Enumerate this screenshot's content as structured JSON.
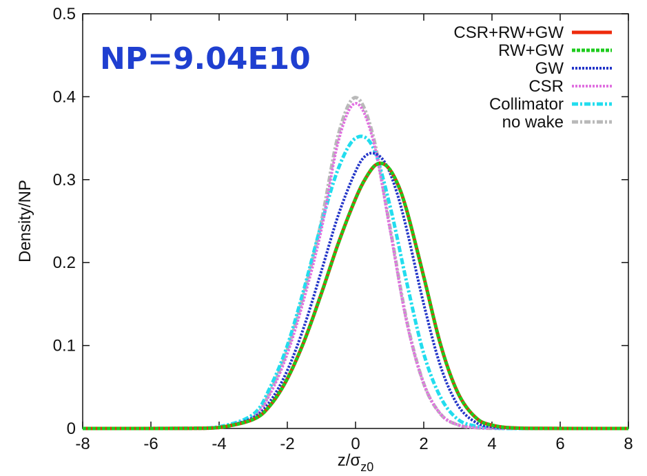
{
  "chart_data": {
    "type": "line",
    "annotation": "NP=9.04E10",
    "xlabel": "z/σ",
    "xlabel_sub": "z0",
    "ylabel": "Density/NP",
    "xlim": [
      -8,
      8
    ],
    "ylim": [
      0,
      0.5
    ],
    "xticks": [
      -8,
      -6,
      -4,
      -2,
      0,
      2,
      4,
      6,
      8
    ],
    "yticks": [
      0,
      0.1,
      0.2,
      0.3,
      0.4,
      0.5
    ],
    "grid": false,
    "legend_position": "top-right",
    "series": [
      {
        "name": "CSR+RW+GW",
        "color": "#ee2a0c",
        "dash": "solid",
        "x": [
          -8,
          -5,
          -4,
          -3,
          -2.5,
          -2,
          -1.5,
          -1,
          -0.5,
          0,
          0.3,
          0.6,
          0.9,
          1.2,
          1.5,
          2,
          2.5,
          3,
          3.5,
          4,
          5,
          8
        ],
        "y": [
          0,
          0.0001,
          0.0012,
          0.011,
          0.028,
          0.06,
          0.106,
          0.163,
          0.224,
          0.277,
          0.302,
          0.318,
          0.317,
          0.298,
          0.263,
          0.183,
          0.1,
          0.043,
          0.014,
          0.004,
          0.0002,
          0
        ]
      },
      {
        "name": "RW+GW",
        "color": "#1ecb1e",
        "dash": "dashed",
        "x": [
          -8,
          -5,
          -4,
          -3,
          -2.5,
          -2,
          -1.5,
          -1,
          -0.5,
          0,
          0.3,
          0.6,
          0.9,
          1.2,
          1.5,
          2,
          2.5,
          3,
          3.5,
          4,
          5,
          8
        ],
        "y": [
          0,
          0.0001,
          0.0012,
          0.011,
          0.028,
          0.06,
          0.106,
          0.163,
          0.224,
          0.277,
          0.302,
          0.318,
          0.317,
          0.298,
          0.263,
          0.183,
          0.1,
          0.043,
          0.014,
          0.004,
          0.0002,
          0
        ]
      },
      {
        "name": "GW",
        "color": "#2436c8",
        "dash": "dotted",
        "x": [
          -8,
          -5,
          -4,
          -3,
          -2.5,
          -2,
          -1.5,
          -1,
          -0.5,
          0,
          0.3,
          0.6,
          0.9,
          1.2,
          1.5,
          2,
          2.5,
          3,
          3.5,
          4,
          5,
          8
        ],
        "y": [
          0,
          0.0001,
          0.0013,
          0.013,
          0.033,
          0.07,
          0.124,
          0.19,
          0.258,
          0.31,
          0.329,
          0.331,
          0.318,
          0.286,
          0.24,
          0.15,
          0.074,
          0.028,
          0.008,
          0.002,
          0.0001,
          0
        ]
      },
      {
        "name": "CSR",
        "color": "#e070e0",
        "dash": "dotted",
        "x": [
          -8,
          -5,
          -4,
          -3,
          -2.5,
          -2,
          -1.5,
          -1,
          -0.5,
          0,
          0.5,
          1,
          1.5,
          2,
          2.5,
          3,
          3.5,
          4,
          5,
          8
        ],
        "y": [
          0,
          0.0001,
          0.0013,
          0.0135,
          0.042,
          0.09,
          0.158,
          0.24,
          0.347,
          0.392,
          0.35,
          0.242,
          0.128,
          0.054,
          0.017,
          0.0044,
          0.001,
          0.0002,
          0,
          0
        ]
      },
      {
        "name": "Collimator",
        "color": "#22ddee",
        "dash": "dashdot",
        "x": [
          -8,
          -5,
          -4,
          -3,
          -2.5,
          -2,
          -1.5,
          -1,
          -0.5,
          0,
          0.5,
          1,
          1.5,
          2,
          2.5,
          3,
          3.5,
          4,
          5,
          8
        ],
        "y": [
          0,
          0.0002,
          0.002,
          0.017,
          0.05,
          0.1,
          0.17,
          0.247,
          0.314,
          0.35,
          0.34,
          0.27,
          0.176,
          0.09,
          0.037,
          0.011,
          0.003,
          0.0005,
          0,
          0
        ]
      },
      {
        "name": "no wake",
        "color": "#b9b9b9",
        "dash": "dashdot",
        "x": [
          -8,
          -5,
          -4,
          -3,
          -2.5,
          -2,
          -1.5,
          -1,
          -0.5,
          0,
          0.5,
          1,
          1.5,
          2,
          2.5,
          3,
          3.5,
          4,
          5,
          8
        ],
        "y": [
          0,
          0.0001,
          0.0013,
          0.0135,
          0.045,
          0.095,
          0.165,
          0.25,
          0.355,
          0.399,
          0.355,
          0.245,
          0.13,
          0.054,
          0.017,
          0.0044,
          0.001,
          0.0002,
          0,
          0
        ]
      }
    ]
  }
}
